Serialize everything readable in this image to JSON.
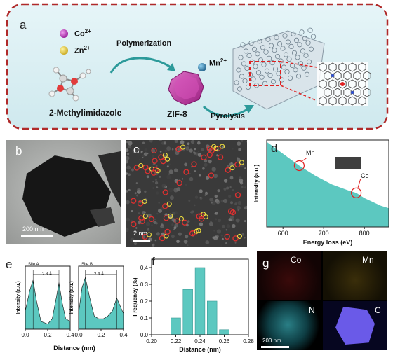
{
  "panel_a": {
    "label": "a",
    "legend_co": "Co",
    "legend_co_sup": "2+",
    "legend_zn": "Zn",
    "legend_zn_sup": "2+",
    "step1": "Polymerization",
    "mn": "Mn",
    "mn_sup": "2+",
    "ligand": "2-Methylimidazole",
    "zif": "ZIF-8",
    "step2": "Pyrolysis"
  },
  "panel_b": {
    "label": "b",
    "scale": "200 nm"
  },
  "panel_c": {
    "label": "c",
    "scale": "2 nm"
  },
  "panel_d": {
    "label": "d",
    "peak_mn": "Mn",
    "peak_co": "Co"
  },
  "panel_e": {
    "label": "e",
    "site_a": "Site A",
    "site_b": "Site B",
    "dist_a": "2.3 Å",
    "dist_b": "2.4 Å"
  },
  "panel_f": {
    "label": "f"
  },
  "panel_g": {
    "label": "g",
    "co": "Co",
    "mn": "Mn",
    "n": "N",
    "c": "C",
    "scale": "200 nm"
  },
  "colors": {
    "co": "#b040b0",
    "zn": "#e8d040",
    "mn": "#2a7fa8",
    "zif": "#c040a0",
    "teal": "#5cc8c0",
    "frame": "#c03030"
  },
  "chart_data": [
    {
      "type": "area",
      "panel": "d",
      "xlabel": "Energy loss (eV)",
      "ylabel": "Intensity (a.u.)",
      "xticks": [
        "600",
        "700",
        "800"
      ],
      "xlim": [
        560,
        860
      ],
      "x": [
        560,
        600,
        640,
        680,
        720,
        760,
        780,
        800,
        840,
        860
      ],
      "y": [
        1.0,
        0.86,
        0.72,
        0.6,
        0.5,
        0.43,
        0.4,
        0.34,
        0.25,
        0.22
      ],
      "annotations": [
        "Mn",
        "Co"
      ]
    },
    {
      "type": "area",
      "panel": "e",
      "series_labels": [
        "Site A",
        "Site B"
      ],
      "xlabel": "Distance (nm)",
      "ylabel": "Intensity (a.u.)",
      "xticks": [
        "0.0",
        "0.2",
        "0.4"
      ],
      "xlim": [
        0,
        0.4
      ],
      "series": [
        {
          "name": "Site A",
          "x": [
            0,
            0.04,
            0.07,
            0.1,
            0.14,
            0.2,
            0.24,
            0.28,
            0.3,
            0.33,
            0.36,
            0.4
          ],
          "values": [
            0.35,
            0.75,
            0.95,
            0.55,
            0.15,
            0.1,
            0.2,
            0.65,
            0.9,
            0.5,
            0.2,
            0.15
          ]
        },
        {
          "name": "Site B",
          "x": [
            0,
            0.03,
            0.06,
            0.1,
            0.14,
            0.18,
            0.22,
            0.26,
            0.3,
            0.34,
            0.38,
            0.4
          ],
          "values": [
            0.3,
            0.8,
            1.0,
            0.6,
            0.25,
            0.2,
            0.2,
            0.25,
            0.35,
            0.6,
            0.4,
            0.3
          ]
        }
      ]
    },
    {
      "type": "bar",
      "panel": "f",
      "xlabel": "Distance (nm)",
      "ylabel": "Frequency (%)",
      "xticks": [
        "0.20",
        "0.22",
        "0.24",
        "0.26",
        "0.28"
      ],
      "yticks": [
        "0.0",
        "0.1",
        "0.2",
        "0.3",
        "0.4"
      ],
      "xlim": [
        0.2,
        0.28
      ],
      "ylim": [
        0,
        0.45
      ],
      "bin_width": 0.008,
      "x": [
        0.22,
        0.23,
        0.24,
        0.25,
        0.26
      ],
      "values": [
        0.1,
        0.27,
        0.4,
        0.2,
        0.03
      ]
    }
  ]
}
